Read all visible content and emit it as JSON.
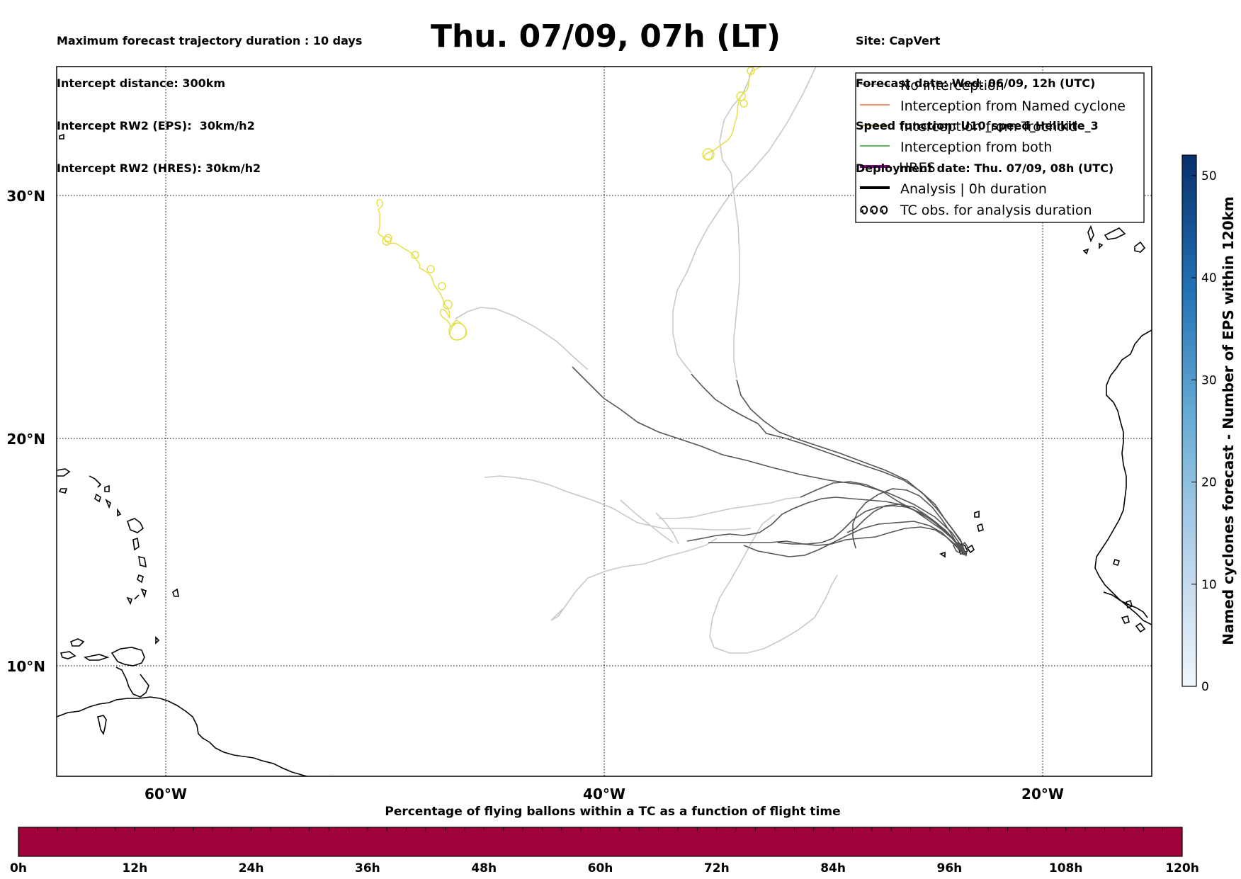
{
  "header": {
    "left_lines": [
      "Maximum forecast trajectory duration : 10 days",
      "Intercept distance: 300km",
      "Intercept RW2 (EPS):  30km/h2",
      "Intercept RW2 (HRES): 30km/h2"
    ],
    "title": "Thu. 07/09, 07h (LT)",
    "right_lines": [
      "Site: CapVert",
      "Forecast date: Wed. 06/09, 12h (UTC)",
      "Speed function: U10_speed_Helikite_3",
      "Deployment date: Thu. 07/09, 08h (UTC)"
    ]
  },
  "map": {
    "lat_ticks": [
      "30°N",
      "20°N",
      "10°N"
    ],
    "lon_ticks": [
      "60°W",
      "40°W",
      "20°W"
    ],
    "gridlines": true,
    "colors": {
      "coastline": "#000000",
      "no_interception": "#555555",
      "no_interception_light": "#c8c8c8",
      "cyclone_track": "#e5e04a"
    }
  },
  "legend": {
    "items": [
      {
        "label": "No Interception",
        "color": "#808080",
        "style": "thin"
      },
      {
        "label": "Interception from Named cyclone",
        "color": "#f07040",
        "style": "thin"
      },
      {
        "label": "Interception from Trochoid",
        "color": "#8b8020",
        "style": "thin"
      },
      {
        "label": "Interception from both",
        "color": "#2ca02c",
        "style": "thin"
      },
      {
        "label": "HRES",
        "color": "#8b008b",
        "style": "thick"
      },
      {
        "label": "Analysis | 0h duration",
        "color": "#000000",
        "style": "thick"
      },
      {
        "label": "TC obs. for analysis duration",
        "color": "#000000",
        "style": "loops"
      }
    ]
  },
  "colorbar_right": {
    "label": "Named cyclones forecast - Number of EPS within 120km",
    "ticks": [
      "0",
      "10",
      "20",
      "30",
      "40",
      "50"
    ],
    "range": [
      0,
      52
    ]
  },
  "colorbar_bottom": {
    "title": "Percentage of flying ballons within a TC as a function of flight time",
    "ticks": [
      "0h",
      "12h",
      "24h",
      "36h",
      "48h",
      "60h",
      "72h",
      "84h",
      "96h",
      "108h",
      "120h"
    ],
    "fill_color": "#a0003c"
  }
}
